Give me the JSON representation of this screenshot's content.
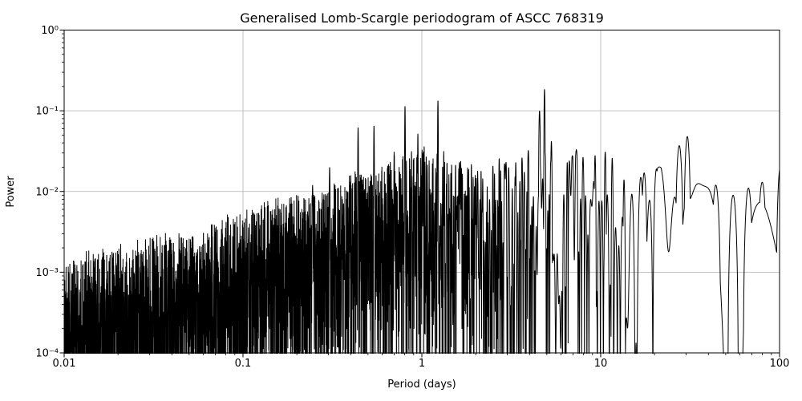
{
  "chart_data": {
    "type": "line",
    "title": "Generalised Lomb-Scargle periodogram of ASCC 768319",
    "xlabel": "Period (days)",
    "ylabel": "Power",
    "xscale": "log",
    "yscale": "log",
    "xlim": [
      0.01,
      100
    ],
    "ylim": [
      0.0001,
      1.0
    ],
    "grid": true,
    "legend": false,
    "line_color": "#000000",
    "grid_color": "#b0b0b0",
    "background_color": "#ffffff",
    "x_ticks": [
      {
        "value": 0.01,
        "label": "0.01"
      },
      {
        "value": 0.1,
        "label": "0.1"
      },
      {
        "value": 1,
        "label": "1"
      },
      {
        "value": 10,
        "label": "10"
      },
      {
        "value": 100,
        "label": "100"
      }
    ],
    "y_ticks": [
      {
        "value": 1,
        "label": "10⁰"
      },
      {
        "value": 0.1,
        "label": "10⁻¹"
      },
      {
        "value": 0.01,
        "label": "10⁻²"
      },
      {
        "value": 0.001,
        "label": "10⁻³"
      },
      {
        "value": 0.0001,
        "label": "10⁻⁴"
      }
    ],
    "major_peaks": [
      {
        "period": 0.245,
        "power": 0.012,
        "width_dex": 0.004
      },
      {
        "period": 0.305,
        "power": 0.02,
        "width_dex": 0.004
      },
      {
        "period": 0.44,
        "power": 0.063,
        "width_dex": 0.0035
      },
      {
        "period": 0.54,
        "power": 0.066,
        "width_dex": 0.0035
      },
      {
        "period": 0.7,
        "power": 0.031,
        "width_dex": 0.003
      },
      {
        "period": 0.805,
        "power": 0.115,
        "width_dex": 0.0035
      },
      {
        "period": 0.95,
        "power": 0.052,
        "width_dex": 0.003
      },
      {
        "period": 1.23,
        "power": 0.135,
        "width_dex": 0.0035
      },
      {
        "period": 1.62,
        "power": 0.023,
        "width_dex": 0.003
      },
      {
        "period": 2.05,
        "power": 0.018,
        "width_dex": 0.0035
      },
      {
        "period": 2.9,
        "power": 0.021,
        "width_dex": 0.004
      },
      {
        "period": 3.35,
        "power": 0.023,
        "width_dex": 0.004
      },
      {
        "period": 4.55,
        "power": 0.1,
        "width_dex": 0.007
      },
      {
        "period": 4.85,
        "power": 0.185,
        "width_dex": 0.005
      },
      {
        "period": 5.3,
        "power": 0.042,
        "width_dex": 0.006
      },
      {
        "period": 6.5,
        "power": 0.023,
        "width_dex": 0.005
      },
      {
        "period": 9.3,
        "power": 0.028,
        "width_dex": 0.007
      },
      {
        "period": 10.6,
        "power": 0.031,
        "width_dex": 0.007
      },
      {
        "period": 11.6,
        "power": 0.026,
        "width_dex": 0.007
      },
      {
        "period": 13.5,
        "power": 0.014,
        "width_dex": 0.008
      },
      {
        "period": 17.5,
        "power": 0.017,
        "width_dex": 0.02
      },
      {
        "period": 20.5,
        "power": 0.019,
        "width_dex": 0.02
      },
      {
        "period": 27.5,
        "power": 0.037,
        "width_dex": 0.025
      },
      {
        "period": 30.5,
        "power": 0.048,
        "width_dex": 0.022
      },
      {
        "period": 44,
        "power": 0.012,
        "width_dex": 0.03
      },
      {
        "period": 55,
        "power": 0.009,
        "width_dex": 0.03
      },
      {
        "period": 67,
        "power": 0.011,
        "width_dex": 0.03
      },
      {
        "period": 80,
        "power": 0.013,
        "width_dex": 0.03
      },
      {
        "period": 101,
        "power": 0.02,
        "width_dex": 0.025
      }
    ],
    "noise_envelope": [
      [
        0.01,
        0.0008
      ],
      [
        0.02,
        0.0011
      ],
      [
        0.05,
        0.0018
      ],
      [
        0.1,
        0.003
      ],
      [
        0.2,
        0.005
      ],
      [
        0.35,
        0.0075
      ],
      [
        0.6,
        0.012
      ],
      [
        1.0,
        0.02
      ],
      [
        1.6,
        0.014
      ],
      [
        2.5,
        0.012
      ],
      [
        4,
        0.017
      ],
      [
        7,
        0.019
      ],
      [
        11,
        0.024
      ],
      [
        16,
        0.013
      ],
      [
        22,
        0.014
      ],
      [
        29,
        0.028
      ],
      [
        34,
        0.02
      ],
      [
        45,
        0.009
      ],
      [
        60,
        0.007
      ],
      [
        75,
        0.009
      ],
      [
        100,
        0.016
      ]
    ]
  }
}
